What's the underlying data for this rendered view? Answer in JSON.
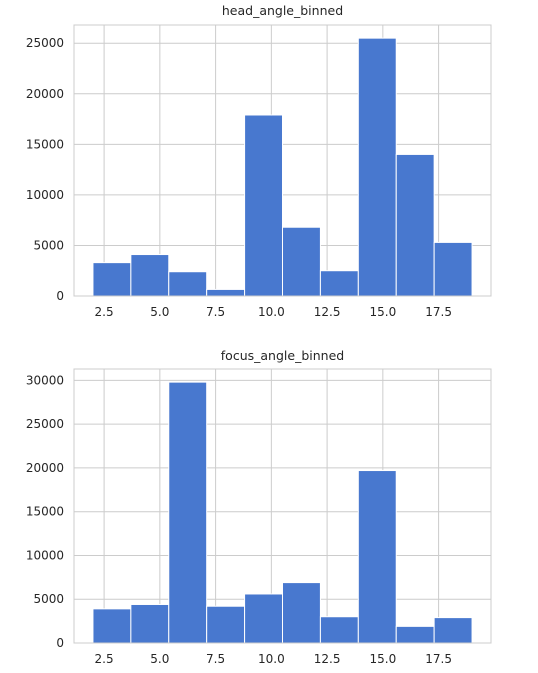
{
  "chart_data": [
    {
      "type": "bar",
      "title": "head_angle_binned",
      "xlabel": "",
      "ylabel": "",
      "bin_edges": [
        2.0,
        3.7,
        5.4,
        7.1,
        8.8,
        10.5,
        12.2,
        13.9,
        15.6,
        17.3,
        19.0
      ],
      "values": [
        3300,
        4100,
        2400,
        650,
        17900,
        6800,
        2500,
        25500,
        14000,
        5300
      ],
      "xlim": [
        1.15,
        19.85
      ],
      "ylim": [
        0,
        26800
      ],
      "xticks": [
        2.5,
        5.0,
        7.5,
        10.0,
        12.5,
        15.0,
        17.5
      ],
      "xtick_labels": [
        "2.5",
        "5.0",
        "7.5",
        "10.0",
        "12.5",
        "15.0",
        "17.5"
      ],
      "yticks": [
        0,
        5000,
        10000,
        15000,
        20000,
        25000
      ],
      "ytick_labels": [
        "0",
        "5000",
        "10000",
        "15000",
        "20000",
        "25000"
      ],
      "grid": true,
      "bar_color": "#4878cf"
    },
    {
      "type": "bar",
      "title": "focus_angle_binned",
      "xlabel": "",
      "ylabel": "",
      "bin_edges": [
        2.0,
        3.7,
        5.4,
        7.1,
        8.8,
        10.5,
        12.2,
        13.9,
        15.6,
        17.3,
        19.0
      ],
      "values": [
        3900,
        4400,
        29800,
        4200,
        5600,
        6900,
        3000,
        19700,
        1900,
        2900
      ],
      "xlim": [
        1.15,
        19.85
      ],
      "ylim": [
        0,
        31300
      ],
      "xticks": [
        2.5,
        5.0,
        7.5,
        10.0,
        12.5,
        15.0,
        17.5
      ],
      "xtick_labels": [
        "2.5",
        "5.0",
        "7.5",
        "10.0",
        "12.5",
        "15.0",
        "17.5"
      ],
      "yticks": [
        0,
        5000,
        10000,
        15000,
        20000,
        25000,
        30000
      ],
      "ytick_labels": [
        "0",
        "5000",
        "10000",
        "15000",
        "20000",
        "25000",
        "30000"
      ],
      "grid": true,
      "bar_color": "#4878cf"
    }
  ]
}
